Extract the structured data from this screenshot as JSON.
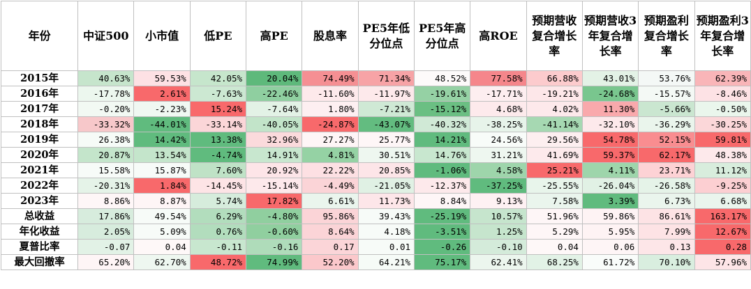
{
  "chart_data": {
    "type": "table",
    "columns": [
      "年份",
      "中证500",
      "小市值",
      "低PE",
      "高PE",
      "股息率",
      "PE5年低分位点",
      "PE5年高分位点",
      "高ROE",
      "预期营收复合增长率",
      "预期营收3年复合增长率",
      "预期盈利复合增长率",
      "预期盈利3年复合增长率"
    ],
    "rows": [
      {
        "label": "2015年",
        "values": [
          "40.63%",
          "59.53%",
          "42.05%",
          "20.04%",
          "74.49%",
          "71.34%",
          "48.52%",
          "77.58%",
          "66.88%",
          "43.01%",
          "53.76%",
          "62.39%"
        ],
        "colors": [
          "#c6e5cc",
          "#fde1e4",
          "#c6e6cc",
          "#5eb97b",
          "#f58f93",
          "#f7a3a6",
          "#fdfafa",
          "#f5868b",
          "#fccbcd",
          "#e3f2e6",
          "#f4f8f6",
          "#f9b5b8"
        ]
      },
      {
        "label": "2016年",
        "values": [
          "-17.78%",
          "2.61%",
          "-7.63%",
          "-22.46%",
          "-11.60%",
          "-11.97%",
          "-19.61%",
          "-17.71%",
          "-19.21%",
          "-24.68%",
          "-15.57%",
          "-8.46%"
        ],
        "colors": [
          "#ecf7ee",
          "#f8696b",
          "#cce8d2",
          "#8fcfa0",
          "#fde9eb",
          "#fde9eb",
          "#95d1a4",
          "#fdeef0",
          "#fde7e9",
          "#79c68e",
          "#f4f9f5",
          "#fde2e5"
        ]
      },
      {
        "label": "2017年",
        "values": [
          "-0.20%",
          "-2.23%",
          "15.24%",
          "-7.64%",
          "1.80%",
          "-7.21%",
          "-15.12%",
          "4.68%",
          "4.02%",
          "11.30%",
          "-5.66%",
          "-0.50%"
        ],
        "colors": [
          "#f2f9f3",
          "#f0f8f2",
          "#f8696b",
          "#e3f2e6",
          "#fdeff1",
          "#cfe9d5",
          "#6bbf83",
          "#fdeaec",
          "#fde9eb",
          "#f9a9ac",
          "#cae6d0",
          "#eaf6ec"
        ]
      },
      {
        "label": "2018年",
        "values": [
          "-33.32%",
          "-44.01%",
          "-33.14%",
          "-40.05%",
          "-24.87%",
          "-43.07%",
          "-40.32%",
          "-38.25%",
          "-41.14%",
          "-32.10%",
          "-36.29%",
          "-30.25%"
        ],
        "colors": [
          "#f7c8ca",
          "#60bb7e",
          "#fbd6d8",
          "#c2e4c9",
          "#f8696b",
          "#63bc80",
          "#d0e9d6",
          "#e7f4ea",
          "#a6d8b2",
          "#fde9eb",
          "#eaf5ec",
          "#fbd7d9"
        ]
      },
      {
        "label": "2019年",
        "values": [
          "26.38%",
          "14.42%",
          "13.38%",
          "32.96%",
          "27.27%",
          "25.77%",
          "14.21%",
          "24.56%",
          "29.56%",
          "54.78%",
          "52.15%",
          "59.81%"
        ],
        "colors": [
          "#f6fbf7",
          "#60bb7e",
          "#60bb7e",
          "#fbdadc",
          "#fef5f6",
          "#fef6f7",
          "#60bb7e",
          "#f8fcf9",
          "#fdeff0",
          "#f8696b",
          "#f98d90",
          "#f8696b"
        ]
      },
      {
        "label": "2020年",
        "values": [
          "20.87%",
          "13.54%",
          "-4.74%",
          "14.91%",
          "4.81%",
          "30.51%",
          "14.76%",
          "31.21%",
          "41.69%",
          "59.37%",
          "62.17%",
          "48.38%"
        ],
        "colors": [
          "#c4e5cb",
          "#c4e5cb",
          "#60bb7e",
          "#c8e7cf",
          "#95d2a4",
          "#eef7f0",
          "#c8e7cf",
          "#eef7f0",
          "#fdeaec",
          "#f8696b",
          "#f8696b",
          "#fde9eb"
        ]
      },
      {
        "label": "2021年",
        "values": [
          "15.58%",
          "15.87%",
          "7.60%",
          "20.92%",
          "22.22%",
          "20.85%",
          "-1.06%",
          "4.58%",
          "25.21%",
          "4.11%",
          "23.71%",
          "11.12%"
        ],
        "colors": [
          "#f7fbf8",
          "#f7fbf8",
          "#bfe2c6",
          "#fde5e8",
          "#fde0e3",
          "#fde5e8",
          "#60bb7e",
          "#9ed5ab",
          "#f8696b",
          "#9ed5ab",
          "#fdd2d5",
          "#d8eddd"
        ]
      },
      {
        "label": "2022年",
        "values": [
          "-20.31%",
          "1.84%",
          "-14.45%",
          "-15.14%",
          "-4.49%",
          "-21.05%",
          "-12.37%",
          "-37.25%",
          "-25.55%",
          "-26.04%",
          "-26.58%",
          "-9.25%"
        ],
        "colors": [
          "#e5f3e8",
          "#f8696b",
          "#fde4e6",
          "#fde9eb",
          "#fbd4d7",
          "#e0f1e4",
          "#fde9eb",
          "#60bb7e",
          "#e8f5eb",
          "#e1f1e5",
          "#e5f3e8",
          "#fccfd2"
        ]
      },
      {
        "label": "2023年",
        "values": [
          "8.86%",
          "8.87%",
          "5.74%",
          "17.82%",
          "6.61%",
          "11.73%",
          "8.84%",
          "9.13%",
          "7.58%",
          "3.39%",
          "6.73%",
          "6.68%"
        ],
        "colors": [
          "#fef6f7",
          "#fef5f6",
          "#d6ecdc",
          "#f8696b",
          "#eaf5ed",
          "#fde6e9",
          "#fef6f7",
          "#fef1f3",
          "#eaf5ed",
          "#60bb7e",
          "#eaf5ed",
          "#eaf5ed"
        ]
      },
      {
        "label": "总收益",
        "values": [
          "17.86%",
          "49.54%",
          "6.29%",
          "-4.80%",
          "95.86%",
          "39.43%",
          "-25.19%",
          "10.57%",
          "51.96%",
          "59.86%",
          "86.61%",
          "163.17%"
        ],
        "colors": [
          "#d7ecdd",
          "#f7fbf8",
          "#b2ddbd",
          "#90cf9f",
          "#fbd4d7",
          "#f7fbf8",
          "#60bb7e",
          "#c6e5cd",
          "#fef6f7",
          "#fef3f4",
          "#fde3e5",
          "#f8696b"
        ]
      },
      {
        "label": "年化收益",
        "values": [
          "2.05%",
          "5.09%",
          "0.76%",
          "-0.60%",
          "8.64%",
          "4.18%",
          "-3.51%",
          "1.25%",
          "5.29%",
          "5.95%",
          "7.99%",
          "12.67%"
        ],
        "colors": [
          "#d7ecdd",
          "#f7fbf8",
          "#b2ddbd",
          "#90cf9f",
          "#fbd4d7",
          "#f7fbf8",
          "#60bb7e",
          "#c6e5cd",
          "#fef6f7",
          "#fef3f4",
          "#fde3e5",
          "#f8696b"
        ]
      },
      {
        "label": "夏普比率",
        "values": [
          "-0.07",
          "0.04",
          "-0.11",
          "-0.16",
          "0.17",
          "0.01",
          "-0.26",
          "-0.10",
          "0.04",
          "0.06",
          "0.13",
          "0.28"
        ],
        "colors": [
          "#e2f2e6",
          "#fef8f8",
          "#c8e7cf",
          "#afdcba",
          "#fbd5d8",
          "#f7fbf8",
          "#60bb7e",
          "#d4ebda",
          "#fef8f8",
          "#fef5f6",
          "#fde6e8",
          "#f8696b"
        ]
      },
      {
        "label": "最大回撤率",
        "values": [
          "65.20%",
          "62.70%",
          "48.72%",
          "74.99%",
          "52.20%",
          "64.21%",
          "75.17%",
          "62.41%",
          "68.25%",
          "61.72%",
          "70.10%",
          "57.96%"
        ],
        "colors": [
          "#fef5f6",
          "#eef7f0",
          "#f8696b",
          "#60bb7e",
          "#fbc8cb",
          "#f6fbf7",
          "#60bb7e",
          "#ecf6ee",
          "#e2f2e6",
          "#f9fcfa",
          "#d9eedf",
          "#fde5e7"
        ]
      }
    ]
  }
}
